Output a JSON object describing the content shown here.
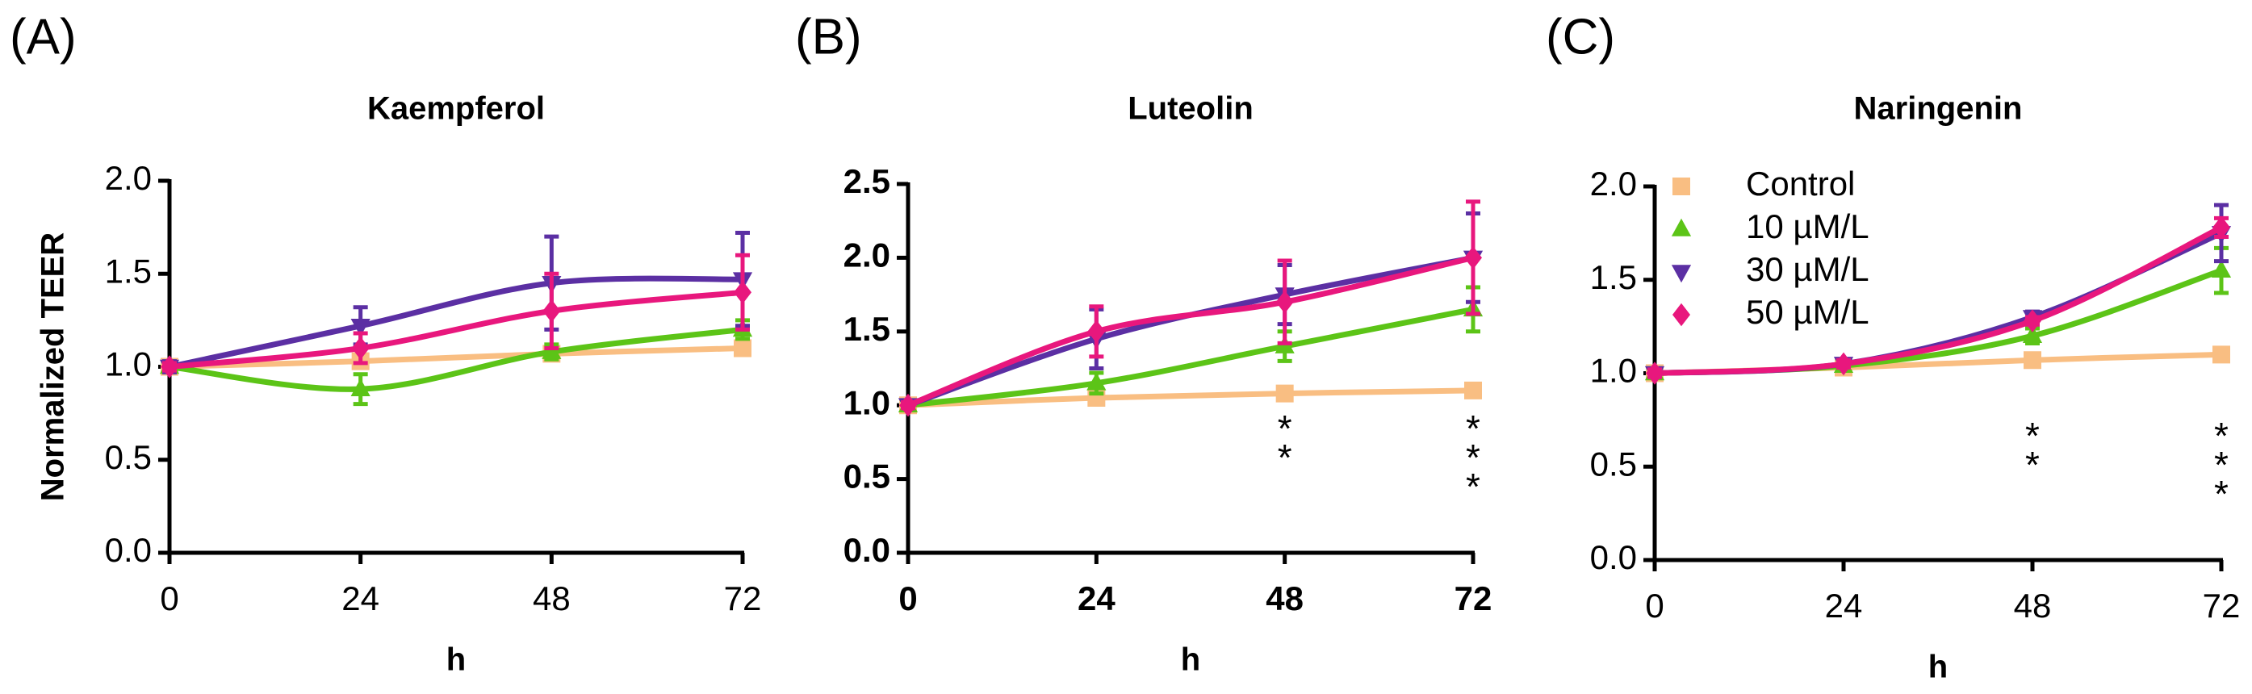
{
  "chart_data": [
    {
      "type": "line",
      "panel_label": "(A)",
      "title": "Kaempferol",
      "y_label": "Normalized TEER",
      "x_label": "h",
      "x": [
        0,
        24,
        48,
        72
      ],
      "xlim": [
        0,
        72
      ],
      "xticks": [
        0,
        24,
        48,
        72
      ],
      "ylim": [
        0,
        2
      ],
      "yticks": [
        {
          "value": 0,
          "label": "0.0"
        },
        {
          "value": 0.5,
          "label": "0.5"
        },
        {
          "value": 1,
          "label": "1.0"
        },
        {
          "value": 1.5,
          "label": "1.5"
        },
        {
          "value": 2,
          "label": "2.0"
        }
      ],
      "bold_ticks": false,
      "series": [
        {
          "color": "#f9be82",
          "marker": "square",
          "values": [
            1.0,
            1.03,
            1.07,
            1.1
          ],
          "errors": [
            0.02,
            0.02,
            0.02,
            0.02
          ]
        },
        {
          "color": "#5cc417",
          "marker": "triangle-up",
          "values": [
            1.0,
            0.88,
            1.08,
            1.2
          ],
          "errors": [
            0.02,
            0.08,
            0.04,
            0.05
          ]
        },
        {
          "color": "#5b2fa3",
          "marker": "triangle-down",
          "values": [
            1.0,
            1.22,
            1.45,
            1.47
          ],
          "errors": [
            0.03,
            0.1,
            0.25,
            0.25
          ]
        },
        {
          "color": "#e8177d",
          "marker": "diamond",
          "values": [
            1.0,
            1.1,
            1.3,
            1.4
          ],
          "errors": [
            0.02,
            0.08,
            0.2,
            0.2
          ]
        }
      ],
      "significance": []
    },
    {
      "type": "line",
      "panel_label": "(B)",
      "title": "Luteolin",
      "x_label": "h",
      "x": [
        0,
        24,
        48,
        72
      ],
      "xlim": [
        0,
        72
      ],
      "xticks": [
        0,
        24,
        48,
        72
      ],
      "ylim": [
        0,
        2.5
      ],
      "yticks": [
        {
          "value": 0,
          "label": "0.0"
        },
        {
          "value": 0.5,
          "label": "0.5"
        },
        {
          "value": 1,
          "label": "1.0"
        },
        {
          "value": 1.5,
          "label": "1.5"
        },
        {
          "value": 2,
          "label": "2.0"
        },
        {
          "value": 2.5,
          "label": "2.5"
        }
      ],
      "bold_ticks": true,
      "series": [
        {
          "color": "#f9be82",
          "marker": "square",
          "values": [
            1.0,
            1.05,
            1.08,
            1.1
          ],
          "errors": [
            0.02,
            0.02,
            0.02,
            0.02
          ]
        },
        {
          "color": "#5cc417",
          "marker": "triangle-up",
          "values": [
            1.0,
            1.15,
            1.4,
            1.65
          ],
          "errors": [
            0.02,
            0.07,
            0.1,
            0.15
          ]
        },
        {
          "color": "#5b2fa3",
          "marker": "triangle-down",
          "values": [
            1.0,
            1.45,
            1.75,
            2.0
          ],
          "errors": [
            0.02,
            0.2,
            0.2,
            0.3
          ]
        },
        {
          "color": "#e8177d",
          "marker": "diamond",
          "values": [
            1.0,
            1.5,
            1.7,
            2.0
          ],
          "errors": [
            0.02,
            0.17,
            0.28,
            0.38
          ]
        }
      ],
      "significance": [
        {
          "x": 48,
          "text": "*",
          "color": "#e8177d"
        },
        {
          "x": 48,
          "text": "*",
          "color": "#5b2fa3"
        },
        {
          "x": 72,
          "text": "*",
          "color": "#5cc417"
        },
        {
          "x": 72,
          "text": "*",
          "color": "#5b2fa3"
        },
        {
          "x": 72,
          "text": "*",
          "color": "#e8177d"
        }
      ]
    },
    {
      "type": "line",
      "panel_label": "(C)",
      "title": "Naringenin",
      "x_label": "h",
      "x": [
        0,
        24,
        48,
        72
      ],
      "xlim": [
        0,
        72
      ],
      "xticks": [
        0,
        24,
        48,
        72
      ],
      "ylim": [
        0,
        2
      ],
      "yticks": [
        {
          "value": 0,
          "label": "0.0"
        },
        {
          "value": 0.5,
          "label": "0.5"
        },
        {
          "value": 1,
          "label": "1.0"
        },
        {
          "value": 1.5,
          "label": "1.5"
        },
        {
          "value": 2,
          "label": "2.0"
        }
      ],
      "bold_ticks": false,
      "legend": "top-left",
      "series": [
        {
          "name": "Control",
          "color": "#f9be82",
          "marker": "square",
          "values": [
            1.0,
            1.03,
            1.07,
            1.1
          ],
          "errors": [
            0.02,
            0.02,
            0.02,
            0.02
          ]
        },
        {
          "name": "10 µM/L",
          "color": "#5cc417",
          "marker": "triangle-up",
          "values": [
            1.0,
            1.04,
            1.2,
            1.55
          ],
          "errors": [
            0.02,
            0.02,
            0.04,
            0.12
          ]
        },
        {
          "name": "30 µM/L",
          "color": "#5b2fa3",
          "marker": "triangle-down",
          "values": [
            1.0,
            1.05,
            1.3,
            1.75
          ],
          "errors": [
            0.02,
            0.02,
            0.03,
            0.15
          ]
        },
        {
          "name": "50 µM/L",
          "color": "#e8177d",
          "marker": "diamond",
          "values": [
            1.0,
            1.05,
            1.28,
            1.78
          ],
          "errors": [
            0.02,
            0.02,
            0.02,
            0.05
          ]
        }
      ],
      "significance": [
        {
          "x": 48,
          "text": "*",
          "color": "#5cc417"
        },
        {
          "x": 48,
          "text": "*",
          "color": "#5b2fa3"
        },
        {
          "x": 72,
          "text": "*",
          "color": "#5cc417"
        },
        {
          "x": 72,
          "text": "*",
          "color": "#5b2fa3"
        },
        {
          "x": 72,
          "text": "*",
          "color": "#e8177d"
        }
      ]
    }
  ]
}
